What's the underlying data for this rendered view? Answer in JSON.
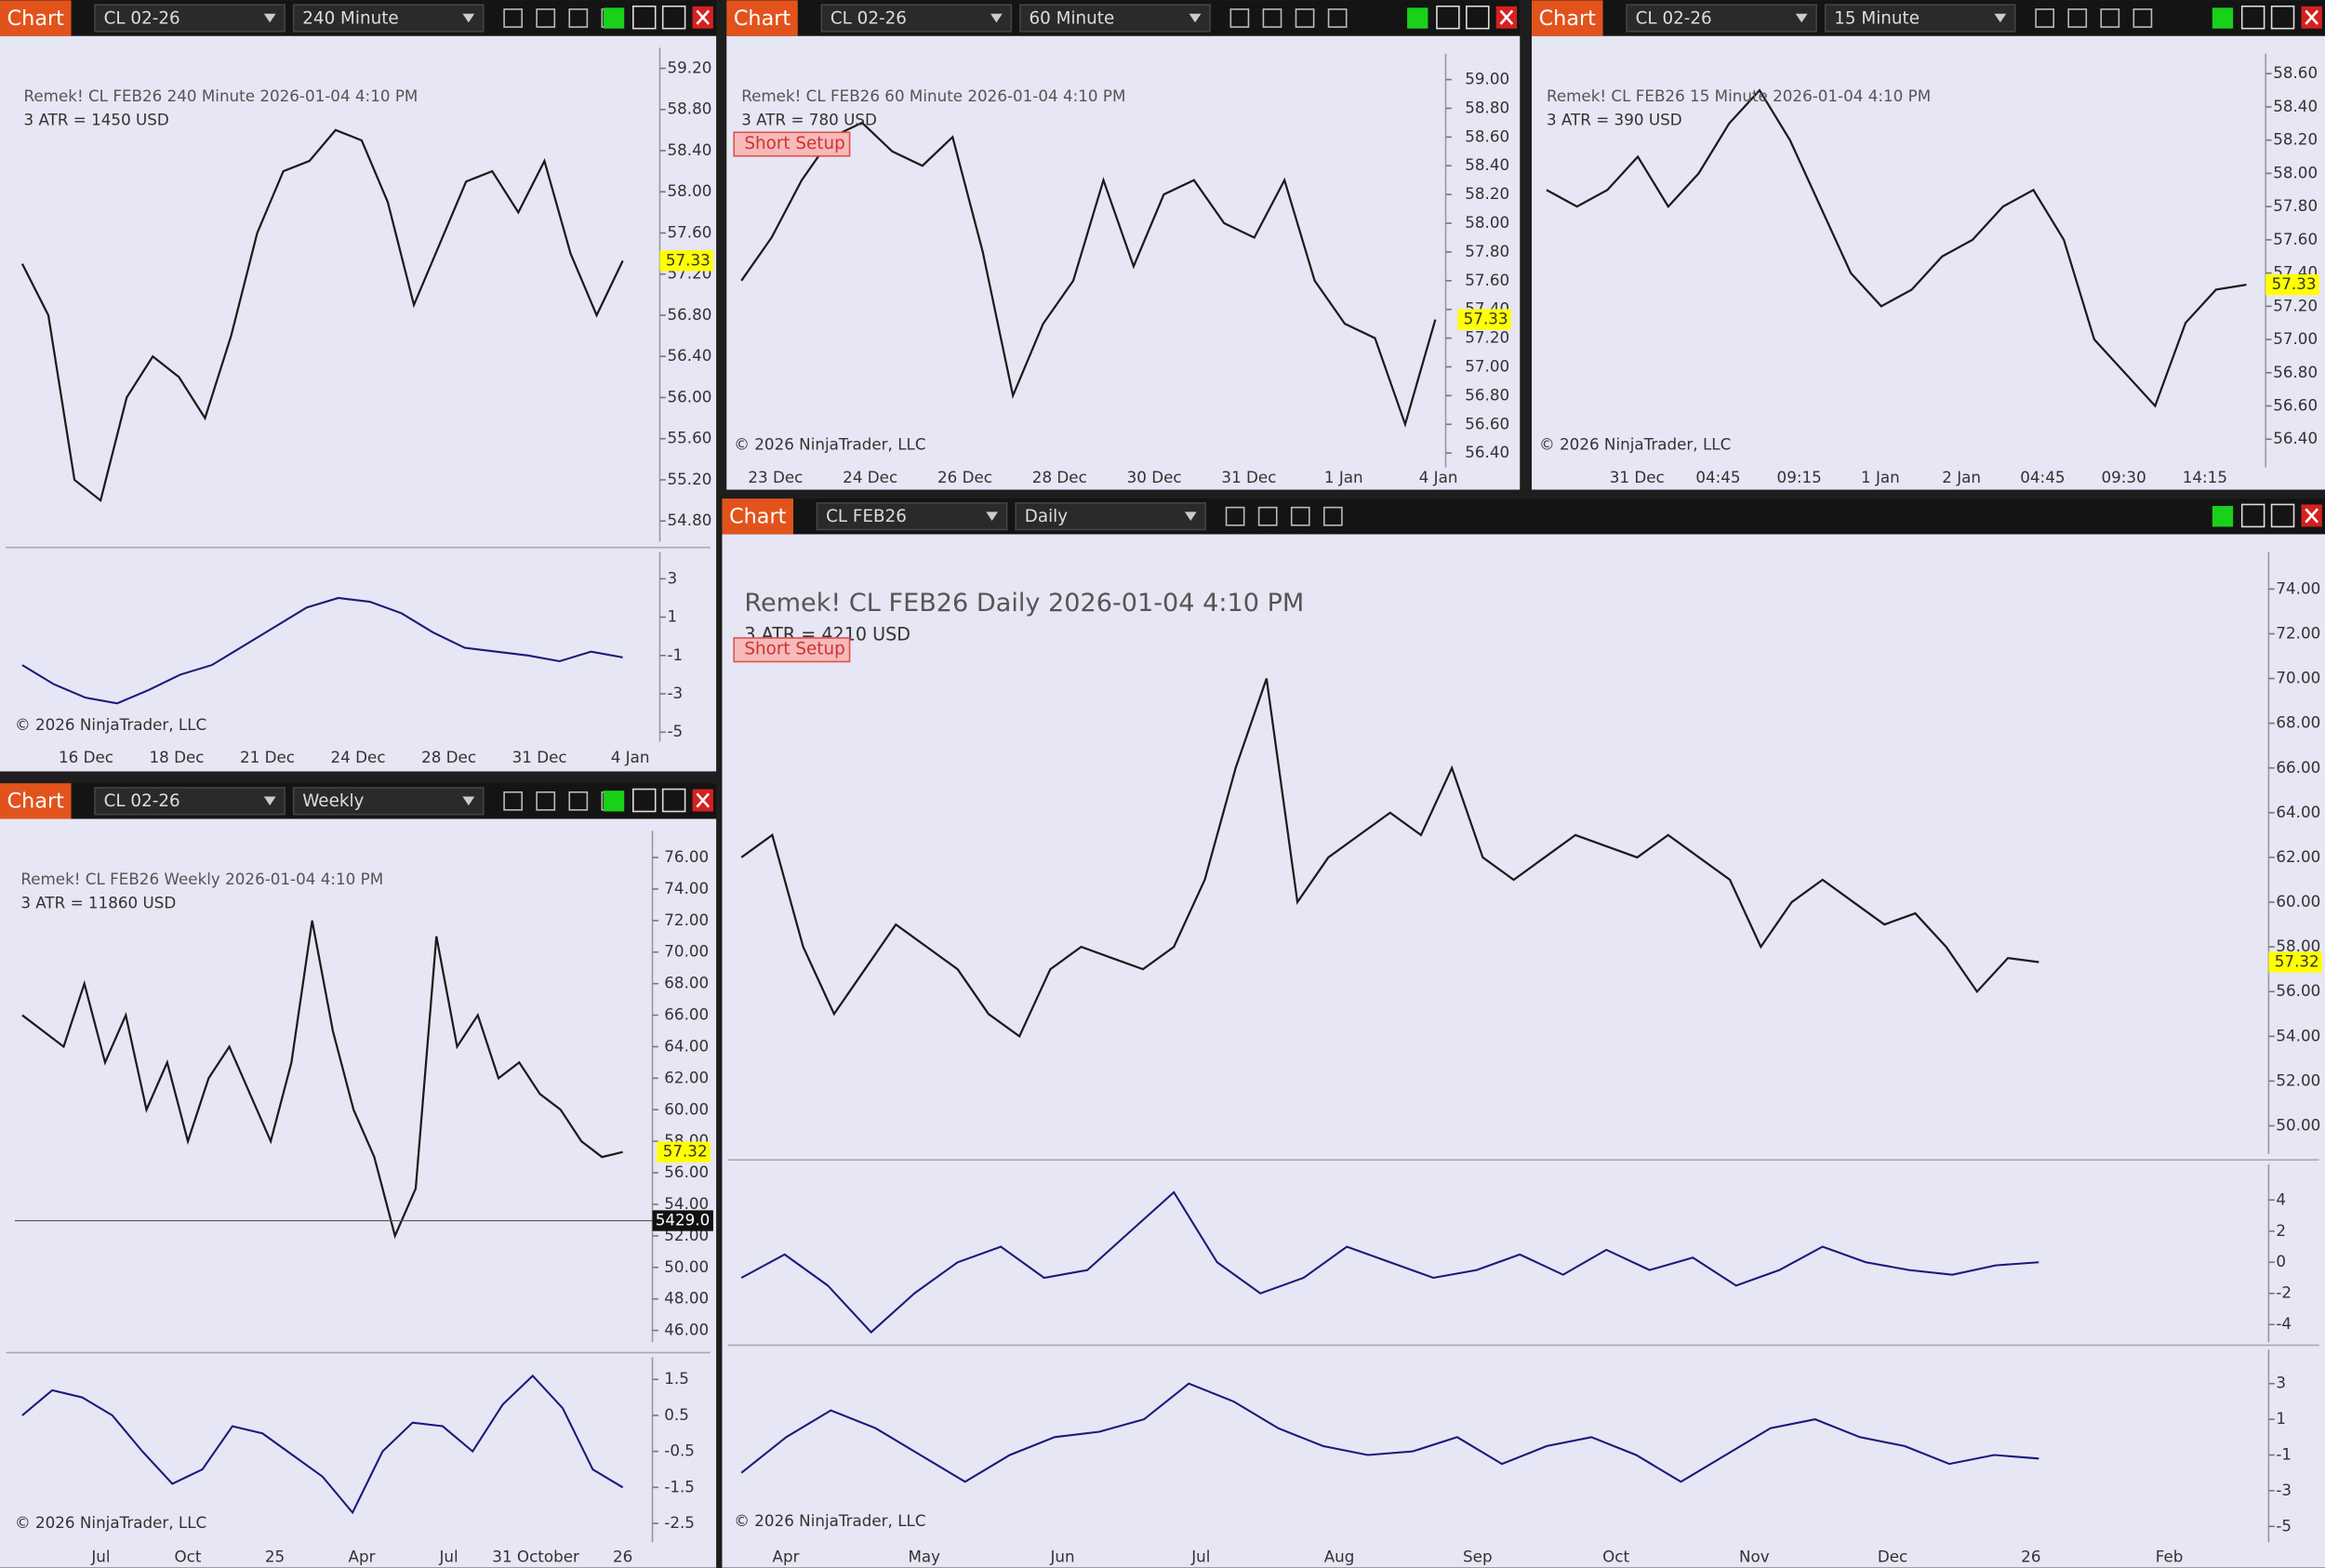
{
  "panels": [
    {
      "toolbar": {
        "tab": "Chart",
        "instrument": "CL 02-26",
        "interval": "240 Minute"
      },
      "header": "Remek!  CL FEB26  240 Minute  2026-01-04 4:10 PM",
      "atr": "3 ATR = 1450 USD",
      "copyright": "© 2026 NinjaTrader, LLC",
      "price_label": {
        "value": 57.33,
        "label": "57.33"
      },
      "ylim": [
        54.6,
        59.4
      ],
      "yticks": [
        {
          "value": 59.2,
          "label": "59.20"
        },
        {
          "value": 58.8,
          "label": "58.80"
        },
        {
          "value": 58.4,
          "label": "58.40"
        },
        {
          "value": 58,
          "label": "58.00"
        },
        {
          "value": 57.6,
          "label": "57.60"
        },
        {
          "value": 57.2,
          "label": "57.20"
        },
        {
          "value": 56.8,
          "label": "56.80"
        },
        {
          "value": 56.4,
          "label": "56.40"
        },
        {
          "value": 56,
          "label": "56.00"
        },
        {
          "value": 55.6,
          "label": "55.60"
        },
        {
          "value": 55.2,
          "label": "55.20"
        },
        {
          "value": 54.8,
          "label": "54.80"
        }
      ],
      "x_labels": [
        "16 Dec",
        "18 Dec",
        "21 Dec",
        "24 Dec",
        "28 Dec",
        "31 Dec",
        "4 Jan"
      ],
      "close": [
        57.3,
        56.8,
        55.2,
        55.0,
        56.0,
        56.4,
        56.2,
        55.8,
        56.6,
        57.6,
        58.2,
        58.3,
        58.6,
        58.5,
        57.9,
        56.9,
        57.5,
        58.1,
        58.2,
        57.8,
        58.3,
        57.4,
        56.8,
        57.33
      ],
      "oscillators": [
        {
          "ylim": [
            -5.5,
            4.4
          ],
          "yticks": [
            3,
            1,
            -1,
            -3,
            -5
          ],
          "values": [
            -1.5,
            -2.5,
            -3.2,
            -3.5,
            -2.8,
            -2,
            -1.5,
            -0.5,
            0.5,
            1.5,
            2,
            1.8,
            1.2,
            0.2,
            -0.6,
            -0.8,
            -1,
            -1.3,
            -0.8,
            -1.1
          ]
        }
      ]
    },
    {
      "toolbar": {
        "tab": "Chart",
        "instrument": "CL 02-26",
        "interval": "60 Minute"
      },
      "header": "Remek!  CL FEB26  60 Minute  2026-01-04 4:10 PM",
      "atr": "3 ATR = 780 USD",
      "short_setup": "Short Setup",
      "copyright": "© 2026 NinjaTrader, LLC",
      "price_label": {
        "value": 57.33,
        "label": "57.33"
      },
      "ylim": [
        56.3,
        59.18
      ],
      "yticks": [
        {
          "value": 59,
          "label": "59.00"
        },
        {
          "value": 58.8,
          "label": "58.80"
        },
        {
          "value": 58.6,
          "label": "58.60"
        },
        {
          "value": 58.4,
          "label": "58.40"
        },
        {
          "value": 58.2,
          "label": "58.20"
        },
        {
          "value": 58,
          "label": "58.00"
        },
        {
          "value": 57.8,
          "label": "57.80"
        },
        {
          "value": 57.6,
          "label": "57.60"
        },
        {
          "value": 57.4,
          "label": "57.40"
        },
        {
          "value": 57.2,
          "label": "57.20"
        },
        {
          "value": 57,
          "label": "57.00"
        },
        {
          "value": 56.8,
          "label": "56.80"
        },
        {
          "value": 56.6,
          "label": "56.60"
        },
        {
          "value": 56.4,
          "label": "56.40"
        }
      ],
      "x_labels": [
        "23 Dec",
        "24 Dec",
        "26 Dec",
        "28 Dec",
        "30 Dec",
        "31 Dec",
        "1 Jan",
        "4 Jan"
      ],
      "close": [
        57.6,
        57.9,
        58.3,
        58.6,
        58.7,
        58.5,
        58.4,
        58.6,
        57.8,
        56.8,
        57.3,
        57.6,
        58.3,
        57.7,
        58.2,
        58.3,
        58.0,
        57.9,
        58.3,
        57.6,
        57.3,
        57.2,
        56.6,
        57.33
      ]
    },
    {
      "toolbar": {
        "tab": "Chart",
        "instrument": "CL 02-26",
        "interval": "15 Minute"
      },
      "header": "Remek!  CL FEB26  15 Minute  2026-01-04 4:10 PM",
      "atr": "3 ATR = 390 USD",
      "copyright": "© 2026 NinjaTrader, LLC",
      "price_label": {
        "value": 57.33,
        "label": "57.33"
      },
      "ylim": [
        56.23,
        58.72
      ],
      "yticks": [
        {
          "value": 58.6,
          "label": "58.60"
        },
        {
          "value": 58.4,
          "label": "58.40"
        },
        {
          "value": 58.2,
          "label": "58.20"
        },
        {
          "value": 58,
          "label": "58.00"
        },
        {
          "value": 57.8,
          "label": "57.80"
        },
        {
          "value": 57.6,
          "label": "57.60"
        },
        {
          "value": 57.4,
          "label": "57.40"
        },
        {
          "value": 57.2,
          "label": "57.20"
        },
        {
          "value": 57,
          "label": "57.00"
        },
        {
          "value": 56.8,
          "label": "56.80"
        },
        {
          "value": 56.6,
          "label": "56.60"
        },
        {
          "value": 56.4,
          "label": "56.40"
        }
      ],
      "x_labels": [
        "31 Dec",
        "04:45",
        "09:15",
        "1 Jan",
        "2 Jan",
        "04:45",
        "09:30",
        "14:15"
      ],
      "close": [
        57.9,
        57.8,
        57.9,
        58.1,
        57.8,
        58.0,
        58.3,
        58.5,
        58.2,
        57.8,
        57.4,
        57.2,
        57.3,
        57.5,
        57.6,
        57.8,
        57.9,
        57.6,
        57.0,
        56.8,
        56.6,
        57.1,
        57.3,
        57.33
      ]
    },
    {
      "toolbar": {
        "tab": "Chart",
        "instrument": "CL 02-26",
        "interval": "Weekly"
      },
      "header": "Remek!  CL FEB26  Weekly  2026-01-04 4:10 PM",
      "atr": "3 ATR = 11860 USD",
      "copyright": "© 2026 NinjaTrader, LLC",
      "price_label": {
        "value": 57.32,
        "label": "57.32"
      },
      "crosshair_label": "5429.0",
      "ylim": [
        45.25,
        77.7
      ],
      "yticks": [
        {
          "value": 76,
          "label": "76.00"
        },
        {
          "value": 74,
          "label": "74.00"
        },
        {
          "value": 72,
          "label": "72.00"
        },
        {
          "value": 70,
          "label": "70.00"
        },
        {
          "value": 68,
          "label": "68.00"
        },
        {
          "value": 66,
          "label": "66.00"
        },
        {
          "value": 64,
          "label": "64.00"
        },
        {
          "value": 62,
          "label": "62.00"
        },
        {
          "value": 60,
          "label": "60.00"
        },
        {
          "value": 58,
          "label": "58.00"
        },
        {
          "value": 56,
          "label": "56.00"
        },
        {
          "value": 54,
          "label": "54.00"
        },
        {
          "value": 52,
          "label": "52.00"
        },
        {
          "value": 50,
          "label": "50.00"
        },
        {
          "value": 48,
          "label": "48.00"
        },
        {
          "value": 46,
          "label": "46.00"
        }
      ],
      "x_labels": [
        "Jul",
        "Oct",
        "25",
        "Apr",
        "Jul",
        "31 October",
        "26"
      ],
      "close": [
        66,
        65,
        64,
        68,
        63,
        66,
        60,
        63,
        58,
        62,
        64,
        61,
        58,
        63,
        72,
        65,
        60,
        57,
        52,
        55,
        71,
        64,
        66,
        62,
        63,
        61,
        60,
        58,
        57,
        57.32
      ],
      "oscillators": [
        {
          "ylim": [
            -3.03,
            2.12
          ],
          "yticks": [
            1.5,
            0.5,
            -0.5,
            -1.5,
            -2.5
          ],
          "values": [
            0.5,
            1.2,
            1.0,
            0.5,
            -0.5,
            -1.4,
            -1.0,
            0.2,
            0.0,
            -0.6,
            -1.2,
            -2.2,
            -0.5,
            0.3,
            0.2,
            -0.5,
            0.8,
            1.6,
            0.7,
            -1.0,
            -1.5
          ]
        }
      ]
    },
    {
      "toolbar": {
        "tab": "Chart",
        "instrument": "CL FEB26",
        "interval": "Daily"
      },
      "header": "Remek!  CL FEB26  Daily  2026-01-04 4:10 PM",
      "atr": "3 ATR = 4210 USD",
      "short_setup": "Short Setup",
      "copyright": "© 2026 NinjaTrader, LLC",
      "price_label": {
        "value": 57.32,
        "label": "57.32"
      },
      "ylim": [
        48.74,
        75.66
      ],
      "yticks": [
        {
          "value": 74,
          "label": "74.00"
        },
        {
          "value": 72,
          "label": "72.00"
        },
        {
          "value": 70,
          "label": "70.00"
        },
        {
          "value": 68,
          "label": "68.00"
        },
        {
          "value": 66,
          "label": "66.00"
        },
        {
          "value": 64,
          "label": "64.00"
        },
        {
          "value": 62,
          "label": "62.00"
        },
        {
          "value": 60,
          "label": "60.00"
        },
        {
          "value": 58,
          "label": "58.00"
        },
        {
          "value": 56,
          "label": "56.00"
        },
        {
          "value": 54,
          "label": "54.00"
        },
        {
          "value": 52,
          "label": "52.00"
        },
        {
          "value": 50,
          "label": "50.00"
        }
      ],
      "x_labels": [
        "Apr",
        "May",
        "Jun",
        "Jul",
        "Aug",
        "Sep",
        "Oct",
        "Nov",
        "Dec",
        "26",
        "Feb"
      ],
      "close": [
        62,
        63,
        58,
        55,
        57,
        59,
        58,
        57,
        55,
        54,
        57,
        58,
        57.5,
        57,
        58,
        61,
        66,
        70,
        60,
        62,
        63,
        64,
        63,
        66,
        62,
        61,
        62,
        63,
        62.5,
        62,
        63,
        62,
        61,
        58,
        60,
        61,
        60,
        59,
        59.5,
        58,
        56,
        57.5,
        57.32
      ],
      "oscillators": [
        {
          "ylim": [
            -5.14,
            6.29
          ],
          "yticks": [
            4,
            2,
            0,
            -2,
            -4
          ],
          "values": [
            -1,
            0.5,
            -1.5,
            -4.5,
            -2,
            0,
            1,
            -1,
            -0.5,
            2,
            4.5,
            0,
            -2,
            -1,
            1,
            0,
            -1,
            -0.5,
            0.5,
            -0.8,
            0.8,
            -0.5,
            0.3,
            -1.5,
            -0.5,
            1,
            0,
            -0.5,
            -0.8,
            -0.2,
            0
          ]
        },
        {
          "ylim": [
            -5.9,
            4.9
          ],
          "yticks": [
            3,
            1,
            -1,
            -3,
            -5
          ],
          "values": [
            -2,
            0,
            1.5,
            0.5,
            -1,
            -2.5,
            -1,
            0,
            0.3,
            1,
            3,
            2,
            0.5,
            -0.5,
            -1,
            -0.8,
            0,
            -1.5,
            -0.5,
            0,
            -1,
            -2.5,
            -1,
            0.5,
            1,
            0,
            -0.5,
            -1.5,
            -1,
            -1.2
          ]
        }
      ]
    }
  ]
}
